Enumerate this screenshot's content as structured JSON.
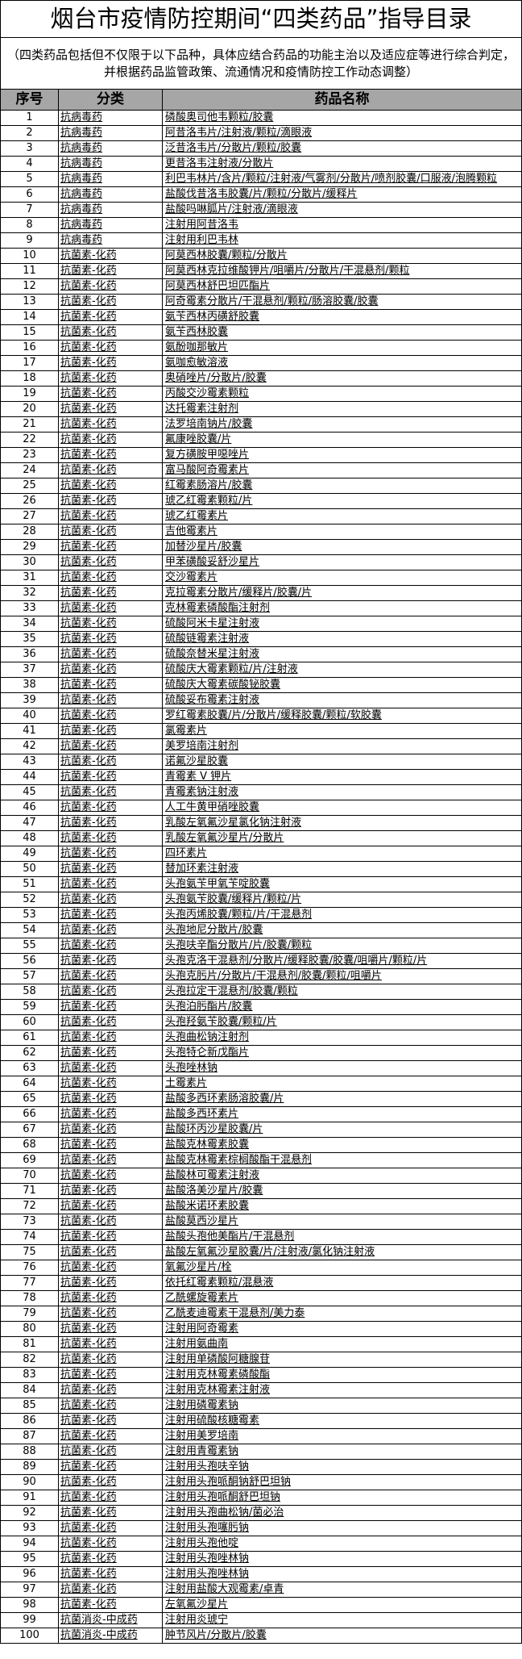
{
  "title": "烟台市疫情防控期间“四类药品”指导目录",
  "subtitle": "（四类药品包括但不仅限于以下品种，具体应结合药品的功能主治以及适应症等进行综合判定，并根据药品监管政策、流通情况和疫情防控工作动态调整）",
  "header": {
    "no": "序号",
    "category": "分类",
    "name": "药品名称"
  },
  "colors": {
    "header_bg": "#a6a6a6",
    "grid": "#000000"
  },
  "rows": [
    {
      "no": "1",
      "cat": "抗病毒药",
      "name": "磷酸奥司他韦颗粒/胶囊"
    },
    {
      "no": "2",
      "cat": "抗病毒药",
      "name": "阿昔洛韦片/注射液/颗粒/滴眼液"
    },
    {
      "no": "3",
      "cat": "抗病毒药",
      "name": "泛昔洛韦片/分散片/颗粒/胶囊"
    },
    {
      "no": "4",
      "cat": "抗病毒药",
      "name": "更昔洛韦注射液/分散片"
    },
    {
      "no": "5",
      "cat": "抗病毒药",
      "name": "利巴韦林片/含片/颗粒/注射液/气雾剂/分散片/喷剂胶囊/口服液/泡腾颗粒"
    },
    {
      "no": "6",
      "cat": "抗病毒药",
      "name": "盐酸伐昔洛韦胶囊/片/颗粒/分散片/缓释片"
    },
    {
      "no": "7",
      "cat": "抗病毒药",
      "name": "盐酸吗啉胍片/注射液/滴眼液"
    },
    {
      "no": "8",
      "cat": "抗病毒药",
      "name": "注射用阿昔洛韦"
    },
    {
      "no": "9",
      "cat": "抗病毒药",
      "name": "注射用利巴韦林"
    },
    {
      "no": "10",
      "cat": "抗菌素-化药",
      "name": "阿莫西林胶囊/颗粒/分散片"
    },
    {
      "no": "11",
      "cat": "抗菌素-化药",
      "name": "阿莫西林克拉维酸钾片/咀嚼片/分散片/干混悬剂/颗粒"
    },
    {
      "no": "12",
      "cat": "抗菌素-化药",
      "name": "阿莫西林舒巴坦匹酯片"
    },
    {
      "no": "13",
      "cat": "抗菌素-化药",
      "name": "阿奇霉素分散片/干混悬剂/颗粒/肠溶胶囊/胶囊"
    },
    {
      "no": "14",
      "cat": "抗菌素-化药",
      "name": "氨苄西林丙磺舒胶囊"
    },
    {
      "no": "15",
      "cat": "抗菌素-化药",
      "name": "氨苄西林胶囊"
    },
    {
      "no": "16",
      "cat": "抗菌素-化药",
      "name": "氨酚咖那敏片"
    },
    {
      "no": "17",
      "cat": "抗菌素-化药",
      "name": "氨咖愈敏溶液"
    },
    {
      "no": "18",
      "cat": "抗菌素-化药",
      "name": "奥硝唑片/分散片/胶囊"
    },
    {
      "no": "19",
      "cat": "抗菌素-化药",
      "name": "丙酸交沙霉素颗粒"
    },
    {
      "no": "20",
      "cat": "抗菌素-化药",
      "name": "达托霉素注射剂"
    },
    {
      "no": "21",
      "cat": "抗菌素-化药",
      "name": "法罗培南钠片/胶囊"
    },
    {
      "no": "22",
      "cat": "抗菌素-化药",
      "name": "氟康唑胶囊/片"
    },
    {
      "no": "23",
      "cat": "抗菌素-化药",
      "name": "复方磺胺甲噁唑片"
    },
    {
      "no": "24",
      "cat": "抗菌素-化药",
      "name": "富马酸阿奇霉素片"
    },
    {
      "no": "25",
      "cat": "抗菌素-化药",
      "name": "红霉素肠溶片/胶囊"
    },
    {
      "no": "26",
      "cat": "抗菌素-化药",
      "name": "琥乙红霉素颗粒/片"
    },
    {
      "no": "27",
      "cat": "抗菌素-化药",
      "name": "琥乙红霉素片"
    },
    {
      "no": "28",
      "cat": "抗菌素-化药",
      "name": "吉他霉素片"
    },
    {
      "no": "29",
      "cat": "抗菌素-化药",
      "name": "加替沙星片/胶囊"
    },
    {
      "no": "30",
      "cat": "抗菌素-化药",
      "name": "甲苯磺酸妥舒沙星片"
    },
    {
      "no": "31",
      "cat": "抗菌素-化药",
      "name": "交沙霉素片"
    },
    {
      "no": "32",
      "cat": "抗菌素-化药",
      "name": "克拉霉素分散片/缓释片/胶囊/片"
    },
    {
      "no": "33",
      "cat": "抗菌素-化药",
      "name": "克林霉素磷酸酯注射剂"
    },
    {
      "no": "34",
      "cat": "抗菌素-化药",
      "name": "硫酸阿米卡星注射液"
    },
    {
      "no": "35",
      "cat": "抗菌素-化药",
      "name": "硫酸链霉素注射液"
    },
    {
      "no": "36",
      "cat": "抗菌素-化药",
      "name": "硫酸奈替米星注射液"
    },
    {
      "no": "37",
      "cat": "抗菌素-化药",
      "name": "硫酸庆大霉素颗粒/片/注射液"
    },
    {
      "no": "38",
      "cat": "抗菌素-化药",
      "name": "硫酸庆大霉素碳酸铋胶囊"
    },
    {
      "no": "39",
      "cat": "抗菌素-化药",
      "name": "硫酸妥布霉素注射液"
    },
    {
      "no": "40",
      "cat": "抗菌素-化药",
      "name": "罗红霉素胶囊/片/分散片/缓释胶囊/颗粒/软胶囊"
    },
    {
      "no": "41",
      "cat": "抗菌素-化药",
      "name": "氯霉素片"
    },
    {
      "no": "42",
      "cat": "抗菌素-化药",
      "name": "美罗培南注射剂"
    },
    {
      "no": "43",
      "cat": "抗菌素-化药",
      "name": "诺氟沙星胶囊"
    },
    {
      "no": "44",
      "cat": "抗菌素-化药",
      "name": "青霉素 V 钾片"
    },
    {
      "no": "45",
      "cat": "抗菌素-化药",
      "name": "青霉素钠注射液"
    },
    {
      "no": "46",
      "cat": "抗菌素-化药",
      "name": "人工牛黄甲硝唑胶囊"
    },
    {
      "no": "47",
      "cat": "抗菌素-化药",
      "name": "乳酸左氧氟沙星氯化钠注射液"
    },
    {
      "no": "48",
      "cat": "抗菌素-化药",
      "name": "乳酸左氧氟沙星片/分散片"
    },
    {
      "no": "49",
      "cat": "抗菌素-化药",
      "name": "四环素片"
    },
    {
      "no": "50",
      "cat": "抗菌素-化药",
      "name": "替加环素注射液"
    },
    {
      "no": "51",
      "cat": "抗菌素-化药",
      "name": "头孢氨苄甲氧苄啶胶囊"
    },
    {
      "no": "52",
      "cat": "抗菌素-化药",
      "name": "头孢氨苄胶囊/缓释片/颗粒/片"
    },
    {
      "no": "53",
      "cat": "抗菌素-化药",
      "name": "头孢丙烯胶囊/颗粒/片/干混悬剂"
    },
    {
      "no": "54",
      "cat": "抗菌素-化药",
      "name": "头孢地尼分散片/胶囊"
    },
    {
      "no": "55",
      "cat": "抗菌素-化药",
      "name": "头孢呋辛酯分散片/片/胶囊/颗粒"
    },
    {
      "no": "56",
      "cat": "抗菌素-化药",
      "name": "头孢克洛干混悬剂/分散片/缓释胶囊/胶囊/咀嚼片/颗粒/片"
    },
    {
      "no": "57",
      "cat": "抗菌素-化药",
      "name": "头孢克肟片/分散片/干混悬剂/胶囊/颗粒/咀嚼片"
    },
    {
      "no": "58",
      "cat": "抗菌素-化药",
      "name": "头孢拉定干混悬剂/胶囊/颗粒"
    },
    {
      "no": "59",
      "cat": "抗菌素-化药",
      "name": "头孢泊肟酯片/胶囊"
    },
    {
      "no": "60",
      "cat": "抗菌素-化药",
      "name": "头孢羟氨苄胶囊/颗粒/片"
    },
    {
      "no": "61",
      "cat": "抗菌素-化药",
      "name": "头孢曲松钠注射剂"
    },
    {
      "no": "62",
      "cat": "抗菌素-化药",
      "name": "头孢特仑新戊酯片"
    },
    {
      "no": "63",
      "cat": "抗菌素-化药",
      "name": "头孢唑林钠"
    },
    {
      "no": "64",
      "cat": "抗菌素-化药",
      "name": "土霉素片"
    },
    {
      "no": "65",
      "cat": "抗菌素-化药",
      "name": "盐酸多西环素肠溶胶囊/片"
    },
    {
      "no": "66",
      "cat": "抗菌素-化药",
      "name": "盐酸多西环素片"
    },
    {
      "no": "67",
      "cat": "抗菌素-化药",
      "name": "盐酸环丙沙星胶囊/片"
    },
    {
      "no": "68",
      "cat": "抗菌素-化药",
      "name": "盐酸克林霉素胶囊"
    },
    {
      "no": "69",
      "cat": "抗菌素-化药",
      "name": "盐酸克林霉素棕榈酸酯干混悬剂"
    },
    {
      "no": "70",
      "cat": "抗菌素-化药",
      "name": "盐酸林可霉素注射液"
    },
    {
      "no": "71",
      "cat": "抗菌素-化药",
      "name": "盐酸洛美沙星片/胶囊"
    },
    {
      "no": "72",
      "cat": "抗菌素-化药",
      "name": "盐酸米诺环素胶囊"
    },
    {
      "no": "73",
      "cat": "抗菌素-化药",
      "name": "盐酸莫西沙星片"
    },
    {
      "no": "74",
      "cat": "抗菌素-化药",
      "name": "盐酸头孢他美酯片/干混悬剂"
    },
    {
      "no": "75",
      "cat": "抗菌素-化药",
      "name": "盐酸左氧氟沙星胶囊/片/注射液/氯化钠注射液"
    },
    {
      "no": "76",
      "cat": "抗菌素-化药",
      "name": "氧氟沙星片/栓"
    },
    {
      "no": "77",
      "cat": "抗菌素-化药",
      "name": "依托红霉素颗粒/混悬液"
    },
    {
      "no": "78",
      "cat": "抗菌素-化药",
      "name": "乙酰螺旋霉素片"
    },
    {
      "no": "79",
      "cat": "抗菌素-化药",
      "name": "乙酰麦迪霉素干混悬剂/美力泰"
    },
    {
      "no": "80",
      "cat": "抗菌素-化药",
      "name": "注射用阿奇霉素"
    },
    {
      "no": "81",
      "cat": "抗菌素-化药",
      "name": "注射用氨曲南"
    },
    {
      "no": "82",
      "cat": "抗菌素-化药",
      "name": "注射用单磷酸阿糖腺苷"
    },
    {
      "no": "83",
      "cat": "抗菌素-化药",
      "name": "注射用克林霉素磷酸酯"
    },
    {
      "no": "84",
      "cat": "抗菌素-化药",
      "name": "注射用克林霉素注射液"
    },
    {
      "no": "85",
      "cat": "抗菌素-化药",
      "name": "注射用磷霉素钠"
    },
    {
      "no": "86",
      "cat": "抗菌素-化药",
      "name": "注射用硫酸核糖霉素"
    },
    {
      "no": "87",
      "cat": "抗菌素-化药",
      "name": "注射用美罗培南"
    },
    {
      "no": "88",
      "cat": "抗菌素-化药",
      "name": "注射用青霉素钠"
    },
    {
      "no": "89",
      "cat": "抗菌素-化药",
      "name": "注射用头孢呋辛钠"
    },
    {
      "no": "90",
      "cat": "抗菌素-化药",
      "name": "注射用头孢哌酮钠舒巴坦钠"
    },
    {
      "no": "91",
      "cat": "抗菌素-化药",
      "name": "注射用头孢哌酮舒巴坦钠"
    },
    {
      "no": "92",
      "cat": "抗菌素-化药",
      "name": "注射用头孢曲松钠/菌必治"
    },
    {
      "no": "93",
      "cat": "抗菌素-化药",
      "name": "注射用头孢噻肟钠"
    },
    {
      "no": "94",
      "cat": "抗菌素-化药",
      "name": "注射用头孢他啶"
    },
    {
      "no": "95",
      "cat": "抗菌素-化药",
      "name": "注射用头孢唑林钠"
    },
    {
      "no": "96",
      "cat": "抗菌素-化药",
      "name": "注射用头孢唑林钠"
    },
    {
      "no": "97",
      "cat": "抗菌素-化药",
      "name": "注射用盐酸大观霉素/卓青"
    },
    {
      "no": "98",
      "cat": "抗菌素-化药",
      "name": "左氧氟沙星片"
    },
    {
      "no": "99",
      "cat": "抗菌消炎-中成药",
      "name": "注射用炎琥宁"
    },
    {
      "no": "100",
      "cat": "抗菌消炎-中成药",
      "name": "肿节风片/分散片/胶囊"
    }
  ]
}
